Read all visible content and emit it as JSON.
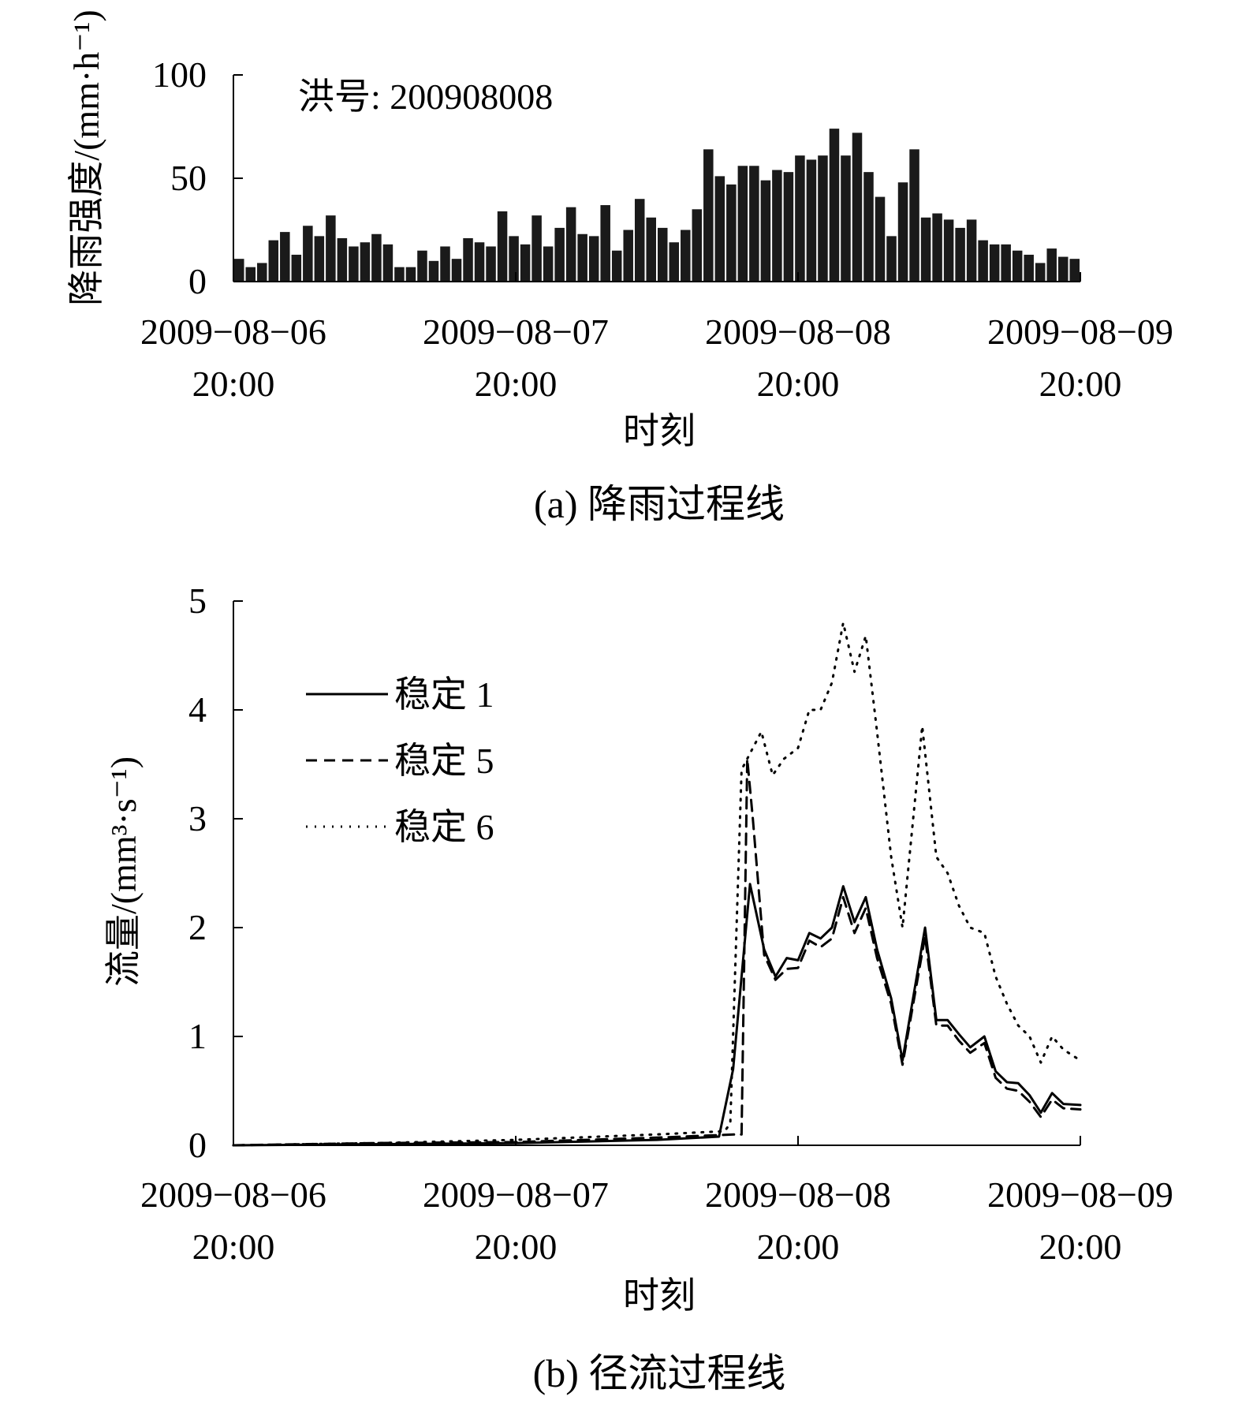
{
  "chart_data": [
    {
      "type": "bar",
      "annotation": "洪号: 200908008",
      "ylabel": "降雨强度/(mm·h⁻¹)",
      "xlabel": "时刻",
      "caption": "(a) 降雨过程线",
      "ylim": [
        0,
        100
      ],
      "yticks": [
        "0",
        "50",
        "100"
      ],
      "xticks": [
        {
          "date": "2009−08−06",
          "time": "20:00"
        },
        {
          "date": "2009−08−07",
          "time": "20:00"
        },
        {
          "date": "2009−08−08",
          "time": "20:00"
        },
        {
          "date": "2009−08−09",
          "time": "20:00"
        }
      ],
      "x_range_days": [
        0,
        3
      ],
      "values": [
        11,
        7,
        9,
        20,
        24,
        13,
        27,
        22,
        32,
        21,
        17,
        19,
        23,
        18,
        7,
        7,
        15,
        10,
        17,
        11,
        21,
        19,
        17,
        34,
        22,
        18,
        32,
        17,
        26,
        36,
        23,
        22,
        37,
        15,
        25,
        40,
        31,
        26,
        19,
        25,
        35,
        64,
        51,
        47,
        56,
        56,
        49,
        54,
        53,
        61,
        59,
        61,
        74,
        61,
        72,
        53,
        41,
        22,
        48,
        64,
        31,
        33,
        30,
        26,
        30,
        20,
        18,
        18,
        15,
        13,
        9,
        16,
        12,
        11
      ],
      "bar_color": "#1a1a1a"
    },
    {
      "type": "line",
      "ylabel": "流量/(mm³·s⁻¹)",
      "xlabel": "时刻",
      "caption": "(b) 径流过程线",
      "ylim": [
        0,
        5
      ],
      "yticks": [
        "0",
        "1",
        "2",
        "3",
        "4",
        "5"
      ],
      "xticks": [
        {
          "date": "2009−08−06",
          "time": "20:00"
        },
        {
          "date": "2009−08−07",
          "time": "20:00"
        },
        {
          "date": "2009−08−08",
          "time": "20:00"
        },
        {
          "date": "2009−08−09",
          "time": "20:00"
        }
      ],
      "x_range_days": [
        0,
        3
      ],
      "legend_position": "top-left",
      "series": [
        {
          "name": "稳定 1",
          "style": "solid",
          "points": [
            [
              0,
              0
            ],
            [
              0.5,
              0.01
            ],
            [
              1.0,
              0.02
            ],
            [
              1.5,
              0.05
            ],
            [
              1.72,
              0.08
            ],
            [
              1.77,
              0.7
            ],
            [
              1.83,
              2.4
            ],
            [
              1.88,
              1.8
            ],
            [
              1.92,
              1.55
            ],
            [
              1.96,
              1.72
            ],
            [
              2.0,
              1.7
            ],
            [
              2.04,
              1.95
            ],
            [
              2.08,
              1.9
            ],
            [
              2.12,
              2.0
            ],
            [
              2.16,
              2.38
            ],
            [
              2.2,
              2.05
            ],
            [
              2.24,
              2.28
            ],
            [
              2.28,
              1.8
            ],
            [
              2.33,
              1.35
            ],
            [
              2.37,
              0.78
            ],
            [
              2.45,
              2.0
            ],
            [
              2.49,
              1.15
            ],
            [
              2.53,
              1.15
            ],
            [
              2.57,
              1.02
            ],
            [
              2.61,
              0.9
            ],
            [
              2.66,
              1.0
            ],
            [
              2.7,
              0.68
            ],
            [
              2.74,
              0.58
            ],
            [
              2.78,
              0.57
            ],
            [
              2.82,
              0.46
            ],
            [
              2.86,
              0.3
            ],
            [
              2.9,
              0.48
            ],
            [
              2.94,
              0.38
            ],
            [
              3.0,
              0.37
            ]
          ]
        },
        {
          "name": "稳定 5",
          "style": "dashed",
          "points": [
            [
              0,
              0
            ],
            [
              0.5,
              0.02
            ],
            [
              1.0,
              0.03
            ],
            [
              1.5,
              0.07
            ],
            [
              1.78,
              0.1
            ],
            [
              1.8,
              0.1
            ],
            [
              1.82,
              3.55
            ],
            [
              1.84,
              3.0
            ],
            [
              1.88,
              1.75
            ],
            [
              1.92,
              1.52
            ],
            [
              1.96,
              1.62
            ],
            [
              2.0,
              1.63
            ],
            [
              2.04,
              1.88
            ],
            [
              2.08,
              1.82
            ],
            [
              2.12,
              1.9
            ],
            [
              2.16,
              2.28
            ],
            [
              2.2,
              1.95
            ],
            [
              2.24,
              2.18
            ],
            [
              2.28,
              1.72
            ],
            [
              2.33,
              1.3
            ],
            [
              2.37,
              0.74
            ],
            [
              2.45,
              1.92
            ],
            [
              2.49,
              1.1
            ],
            [
              2.53,
              1.1
            ],
            [
              2.57,
              0.96
            ],
            [
              2.61,
              0.85
            ],
            [
              2.66,
              0.94
            ],
            [
              2.7,
              0.62
            ],
            [
              2.74,
              0.52
            ],
            [
              2.78,
              0.5
            ],
            [
              2.82,
              0.4
            ],
            [
              2.86,
              0.26
            ],
            [
              2.9,
              0.42
            ],
            [
              2.94,
              0.34
            ],
            [
              3.0,
              0.33
            ]
          ]
        },
        {
          "name": "稳定 6",
          "style": "dotted",
          "points": [
            [
              0,
              0
            ],
            [
              0.5,
              0.02
            ],
            [
              1.0,
              0.05
            ],
            [
              1.5,
              0.1
            ],
            [
              1.74,
              0.13
            ],
            [
              1.76,
              0.2
            ],
            [
              1.8,
              3.45
            ],
            [
              1.84,
              3.65
            ],
            [
              1.87,
              3.8
            ],
            [
              1.91,
              3.4
            ],
            [
              1.95,
              3.55
            ],
            [
              2.0,
              3.65
            ],
            [
              2.04,
              4.0
            ],
            [
              2.08,
              4.0
            ],
            [
              2.12,
              4.25
            ],
            [
              2.16,
              4.8
            ],
            [
              2.2,
              4.35
            ],
            [
              2.24,
              4.68
            ],
            [
              2.28,
              3.8
            ],
            [
              2.33,
              2.65
            ],
            [
              2.37,
              2.0
            ],
            [
              2.44,
              3.85
            ],
            [
              2.49,
              2.65
            ],
            [
              2.53,
              2.5
            ],
            [
              2.57,
              2.2
            ],
            [
              2.61,
              2.0
            ],
            [
              2.66,
              1.95
            ],
            [
              2.7,
              1.55
            ],
            [
              2.74,
              1.3
            ],
            [
              2.78,
              1.1
            ],
            [
              2.82,
              1.0
            ],
            [
              2.86,
              0.76
            ],
            [
              2.9,
              1.0
            ],
            [
              2.94,
              0.88
            ],
            [
              3.0,
              0.78
            ]
          ]
        }
      ]
    }
  ]
}
